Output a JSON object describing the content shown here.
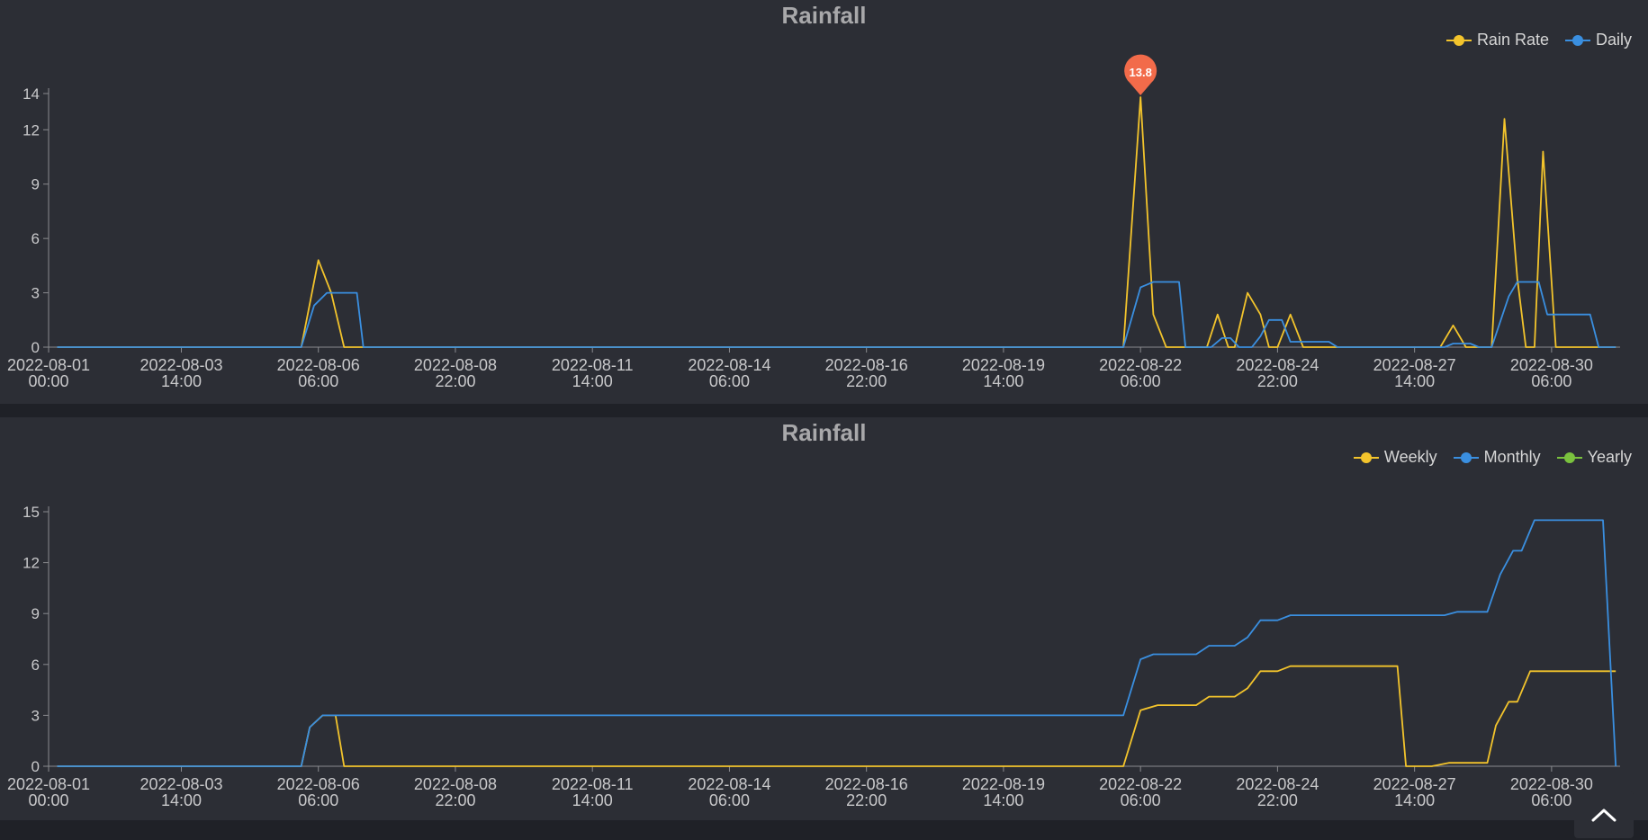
{
  "scroll_top_icon": "chevron-up-icon",
  "chart_data": [
    {
      "type": "line",
      "title": "Rainfall",
      "x_tick_labels": [
        [
          "2022-08-01",
          "00:00"
        ],
        [
          "2022-08-03",
          "14:00"
        ],
        [
          "2022-08-06",
          "06:00"
        ],
        [
          "2022-08-08",
          "22:00"
        ],
        [
          "2022-08-11",
          "14:00"
        ],
        [
          "2022-08-14",
          "06:00"
        ],
        [
          "2022-08-16",
          "22:00"
        ],
        [
          "2022-08-19",
          "14:00"
        ],
        [
          "2022-08-22",
          "06:00"
        ],
        [
          "2022-08-24",
          "22:00"
        ],
        [
          "2022-08-27",
          "14:00"
        ],
        [
          "2022-08-30",
          "06:00"
        ]
      ],
      "xlim": [
        "2022-08-01 00:00",
        "2022-08-31 14:00"
      ],
      "ylim": [
        0,
        14
      ],
      "y_ticks": [
        0,
        3,
        6,
        9,
        12,
        14
      ],
      "legend_position": "top-right",
      "markpoint": {
        "series": "Rain Rate",
        "x": "2022-08-22 06:00",
        "y": 13.8,
        "label": "13.8",
        "color": "#f26b4a"
      },
      "series": [
        {
          "name": "Rain Rate",
          "color": "#f3c42c",
          "points": [
            [
              "2022-08-01 04:00",
              0
            ],
            [
              "2022-08-05 22:00",
              0
            ],
            [
              "2022-08-06 06:00",
              4.8
            ],
            [
              "2022-08-06 12:00",
              3.0
            ],
            [
              "2022-08-06 18:00",
              0
            ],
            [
              "2022-08-21 22:00",
              0
            ],
            [
              "2022-08-22 06:00",
              13.8
            ],
            [
              "2022-08-22 12:00",
              1.8
            ],
            [
              "2022-08-22 18:00",
              0
            ],
            [
              "2022-08-23 13:00",
              0
            ],
            [
              "2022-08-23 18:00",
              1.8
            ],
            [
              "2022-08-23 23:00",
              0
            ],
            [
              "2022-08-24 02:00",
              0
            ],
            [
              "2022-08-24 08:00",
              3.0
            ],
            [
              "2022-08-24 14:00",
              1.8
            ],
            [
              "2022-08-24 18:00",
              0
            ],
            [
              "2022-08-24 22:00",
              0
            ],
            [
              "2022-08-25 04:00",
              1.8
            ],
            [
              "2022-08-25 10:00",
              0
            ],
            [
              "2022-08-28 02:00",
              0
            ],
            [
              "2022-08-28 08:00",
              1.2
            ],
            [
              "2022-08-28 14:00",
              0
            ],
            [
              "2022-08-29 02:00",
              0
            ],
            [
              "2022-08-29 08:00",
              12.6
            ],
            [
              "2022-08-29 14:00",
              3.8
            ],
            [
              "2022-08-29 18:00",
              0
            ],
            [
              "2022-08-29 22:00",
              0
            ],
            [
              "2022-08-30 02:00",
              10.8
            ],
            [
              "2022-08-30 08:00",
              0
            ],
            [
              "2022-08-31 12:00",
              0
            ]
          ]
        },
        {
          "name": "Daily",
          "color": "#3a8fe0",
          "points": [
            [
              "2022-08-01 04:00",
              0
            ],
            [
              "2022-08-05 22:00",
              0
            ],
            [
              "2022-08-06 04:00",
              2.3
            ],
            [
              "2022-08-06 10:00",
              3.0
            ],
            [
              "2022-08-06 18:00",
              3.0
            ],
            [
              "2022-08-07 00:00",
              3.0
            ],
            [
              "2022-08-07 03:00",
              0
            ],
            [
              "2022-08-21 22:00",
              0
            ],
            [
              "2022-08-22 06:00",
              3.3
            ],
            [
              "2022-08-22 12:00",
              3.6
            ],
            [
              "2022-08-23 00:00",
              3.6
            ],
            [
              "2022-08-23 03:00",
              0
            ],
            [
              "2022-08-23 15:00",
              0
            ],
            [
              "2022-08-23 20:00",
              0.5
            ],
            [
              "2022-08-24 00:00",
              0.5
            ],
            [
              "2022-08-24 04:00",
              0
            ],
            [
              "2022-08-24 10:00",
              0
            ],
            [
              "2022-08-24 14:00",
              0.6
            ],
            [
              "2022-08-24 18:00",
              1.5
            ],
            [
              "2022-08-25 00:00",
              1.5
            ],
            [
              "2022-08-25 04:00",
              0.3
            ],
            [
              "2022-08-25 22:00",
              0.3
            ],
            [
              "2022-08-26 02:00",
              0
            ],
            [
              "2022-08-28 04:00",
              0
            ],
            [
              "2022-08-28 08:00",
              0.2
            ],
            [
              "2022-08-28 16:00",
              0.2
            ],
            [
              "2022-08-28 20:00",
              0
            ],
            [
              "2022-08-29 02:00",
              0
            ],
            [
              "2022-08-29 10:00",
              2.8
            ],
            [
              "2022-08-29 14:00",
              3.6
            ],
            [
              "2022-08-30 00:00",
              3.6
            ],
            [
              "2022-08-30 04:00",
              1.8
            ],
            [
              "2022-08-31 00:00",
              1.8
            ],
            [
              "2022-08-31 04:00",
              0
            ],
            [
              "2022-08-31 12:00",
              0
            ]
          ]
        }
      ]
    },
    {
      "type": "line",
      "title": "Rainfall",
      "x_tick_labels": [
        [
          "2022-08-01",
          "00:00"
        ],
        [
          "2022-08-03",
          "14:00"
        ],
        [
          "2022-08-06",
          "06:00"
        ],
        [
          "2022-08-08",
          "22:00"
        ],
        [
          "2022-08-11",
          "14:00"
        ],
        [
          "2022-08-14",
          "06:00"
        ],
        [
          "2022-08-16",
          "22:00"
        ],
        [
          "2022-08-19",
          "14:00"
        ],
        [
          "2022-08-22",
          "06:00"
        ],
        [
          "2022-08-24",
          "22:00"
        ],
        [
          "2022-08-27",
          "14:00"
        ],
        [
          "2022-08-30",
          "06:00"
        ]
      ],
      "xlim": [
        "2022-08-01 00:00",
        "2022-08-31 14:00"
      ],
      "ylim": [
        0,
        15
      ],
      "y_ticks": [
        0,
        3,
        6,
        9,
        12,
        15
      ],
      "legend_position": "top-right",
      "series": [
        {
          "name": "Weekly",
          "color": "#f3c42c",
          "points": [
            [
              "2022-08-01 04:00",
              0
            ],
            [
              "2022-08-05 22:00",
              0
            ],
            [
              "2022-08-06 02:00",
              2.3
            ],
            [
              "2022-08-06 08:00",
              3.0
            ],
            [
              "2022-08-06 14:00",
              3.0
            ],
            [
              "2022-08-06 18:00",
              0
            ],
            [
              "2022-08-21 22:00",
              0
            ],
            [
              "2022-08-22 06:00",
              3.3
            ],
            [
              "2022-08-22 14:00",
              3.6
            ],
            [
              "2022-08-23 08:00",
              3.6
            ],
            [
              "2022-08-23 14:00",
              4.1
            ],
            [
              "2022-08-24 02:00",
              4.1
            ],
            [
              "2022-08-24 08:00",
              4.6
            ],
            [
              "2022-08-24 14:00",
              5.6
            ],
            [
              "2022-08-24 22:00",
              5.6
            ],
            [
              "2022-08-25 04:00",
              5.9
            ],
            [
              "2022-08-27 06:00",
              5.9
            ],
            [
              "2022-08-27 10:00",
              0
            ],
            [
              "2022-08-27 22:00",
              0
            ],
            [
              "2022-08-28 06:00",
              0.2
            ],
            [
              "2022-08-29 00:00",
              0.2
            ],
            [
              "2022-08-29 04:00",
              2.4
            ],
            [
              "2022-08-29 10:00",
              3.8
            ],
            [
              "2022-08-29 14:00",
              3.8
            ],
            [
              "2022-08-29 20:00",
              5.6
            ],
            [
              "2022-08-31 12:00",
              5.6
            ]
          ]
        },
        {
          "name": "Monthly",
          "color": "#3a8fe0",
          "points": [
            [
              "2022-08-01 04:00",
              0
            ],
            [
              "2022-08-05 22:00",
              0
            ],
            [
              "2022-08-06 02:00",
              2.3
            ],
            [
              "2022-08-06 08:00",
              3.0
            ],
            [
              "2022-08-21 22:00",
              3.0
            ],
            [
              "2022-08-22 06:00",
              6.3
            ],
            [
              "2022-08-22 12:00",
              6.6
            ],
            [
              "2022-08-23 08:00",
              6.6
            ],
            [
              "2022-08-23 14:00",
              7.1
            ],
            [
              "2022-08-24 02:00",
              7.1
            ],
            [
              "2022-08-24 08:00",
              7.6
            ],
            [
              "2022-08-24 14:00",
              8.6
            ],
            [
              "2022-08-24 22:00",
              8.6
            ],
            [
              "2022-08-25 04:00",
              8.9
            ],
            [
              "2022-08-28 04:00",
              8.9
            ],
            [
              "2022-08-28 10:00",
              9.1
            ],
            [
              "2022-08-29 00:00",
              9.1
            ],
            [
              "2022-08-29 06:00",
              11.3
            ],
            [
              "2022-08-29 12:00",
              12.7
            ],
            [
              "2022-08-29 16:00",
              12.7
            ],
            [
              "2022-08-29 22:00",
              14.5
            ],
            [
              "2022-08-31 06:00",
              14.5
            ],
            [
              "2022-08-31 12:00",
              0
            ]
          ]
        },
        {
          "name": "Yearly",
          "color": "#7ac23e",
          "points": []
        }
      ]
    }
  ]
}
